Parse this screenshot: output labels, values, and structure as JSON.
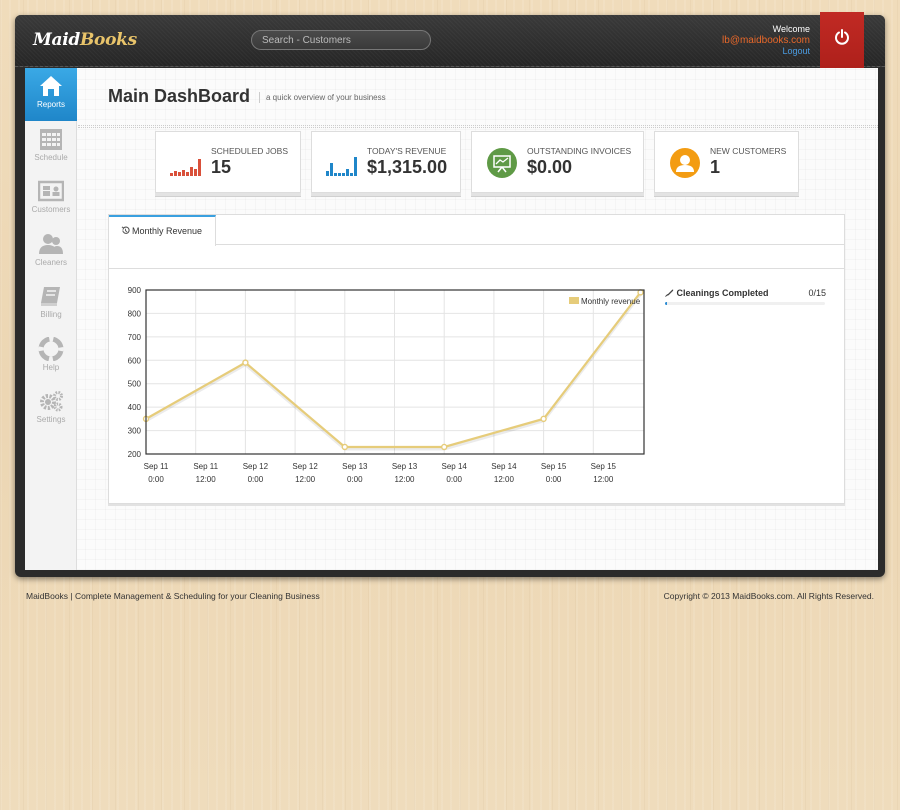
{
  "app": {
    "logo_part1": "Maid",
    "logo_part2": "Books",
    "search_placeholder": "Search - Customers",
    "welcome_label": "Welcome",
    "user_email": "lb@maidbooks.com",
    "logout_label": "Logout",
    "power_icon": "power-icon"
  },
  "sidebar": {
    "items": [
      {
        "label": "Reports",
        "icon": "home-icon",
        "active": true
      },
      {
        "label": "Schedule",
        "icon": "calendar-icon",
        "active": false
      },
      {
        "label": "Customers",
        "icon": "id-card-icon",
        "active": false
      },
      {
        "label": "Cleaners",
        "icon": "users-icon",
        "active": false
      },
      {
        "label": "Billing",
        "icon": "book-icon",
        "active": false
      },
      {
        "label": "Help",
        "icon": "lifebuoy-icon",
        "active": false
      },
      {
        "label": "Settings",
        "icon": "gears-icon",
        "active": false
      }
    ]
  },
  "page": {
    "title": "Main DashBoard",
    "subtitle": "a quick overview of your business"
  },
  "stats": [
    {
      "label": "SCHEDULED JOBS",
      "value": "15",
      "icon": "bar-chart-red-icon"
    },
    {
      "label": "TODAY'S REVENUE",
      "value": "$1,315.00",
      "icon": "bar-chart-blue-icon"
    },
    {
      "label": "OUTSTANDING INVOICES",
      "value": "$0.00",
      "icon": "presentation-icon"
    },
    {
      "label": "NEW CUSTOMERS",
      "value": "1",
      "icon": "user-icon"
    }
  ],
  "widget": {
    "tab_label": "Monthly Revenue",
    "tab_icon": "history-icon"
  },
  "progress": {
    "title": "Cleanings Completed",
    "count": "0/15",
    "fraction": 0,
    "icon": "feather-icon"
  },
  "colors": {
    "accent_blue": "#2a8bd3",
    "brand_red": "#c12a24",
    "line_gold": "#e6cc7a",
    "email_orange": "#e8682a"
  },
  "chart_data": {
    "type": "line",
    "x": [
      "Sep 11 0:00",
      "Sep 12 0:00",
      "Sep 13 0:00",
      "Sep 14 0:00",
      "Sep 15 0:00",
      "Sep 15 21:00"
    ],
    "tick_labels": [
      [
        "Sep 11",
        "0:00"
      ],
      [
        "Sep 11",
        "12:00"
      ],
      [
        "Sep 12",
        "0:00"
      ],
      [
        "Sep 12",
        "12:00"
      ],
      [
        "Sep 13",
        "0:00"
      ],
      [
        "Sep 13",
        "12:00"
      ],
      [
        "Sep 14",
        "0:00"
      ],
      [
        "Sep 14",
        "12:00"
      ],
      [
        "Sep 15",
        "0:00"
      ],
      [
        "Sep 15",
        "12:00"
      ]
    ],
    "series": [
      {
        "name": "Monthly revenue",
        "values": [
          350,
          590,
          230,
          230,
          350,
          890
        ]
      }
    ],
    "yticks": [
      200,
      300,
      400,
      500,
      600,
      700,
      800,
      900
    ],
    "ylim": [
      200,
      900
    ],
    "grid": true,
    "legend": "top-right"
  },
  "footer": {
    "left": "MaidBooks | Complete Management & Scheduling for your Cleaning Business",
    "right": "Copyright © 2013 MaidBooks.com. All Rights Reserved."
  }
}
